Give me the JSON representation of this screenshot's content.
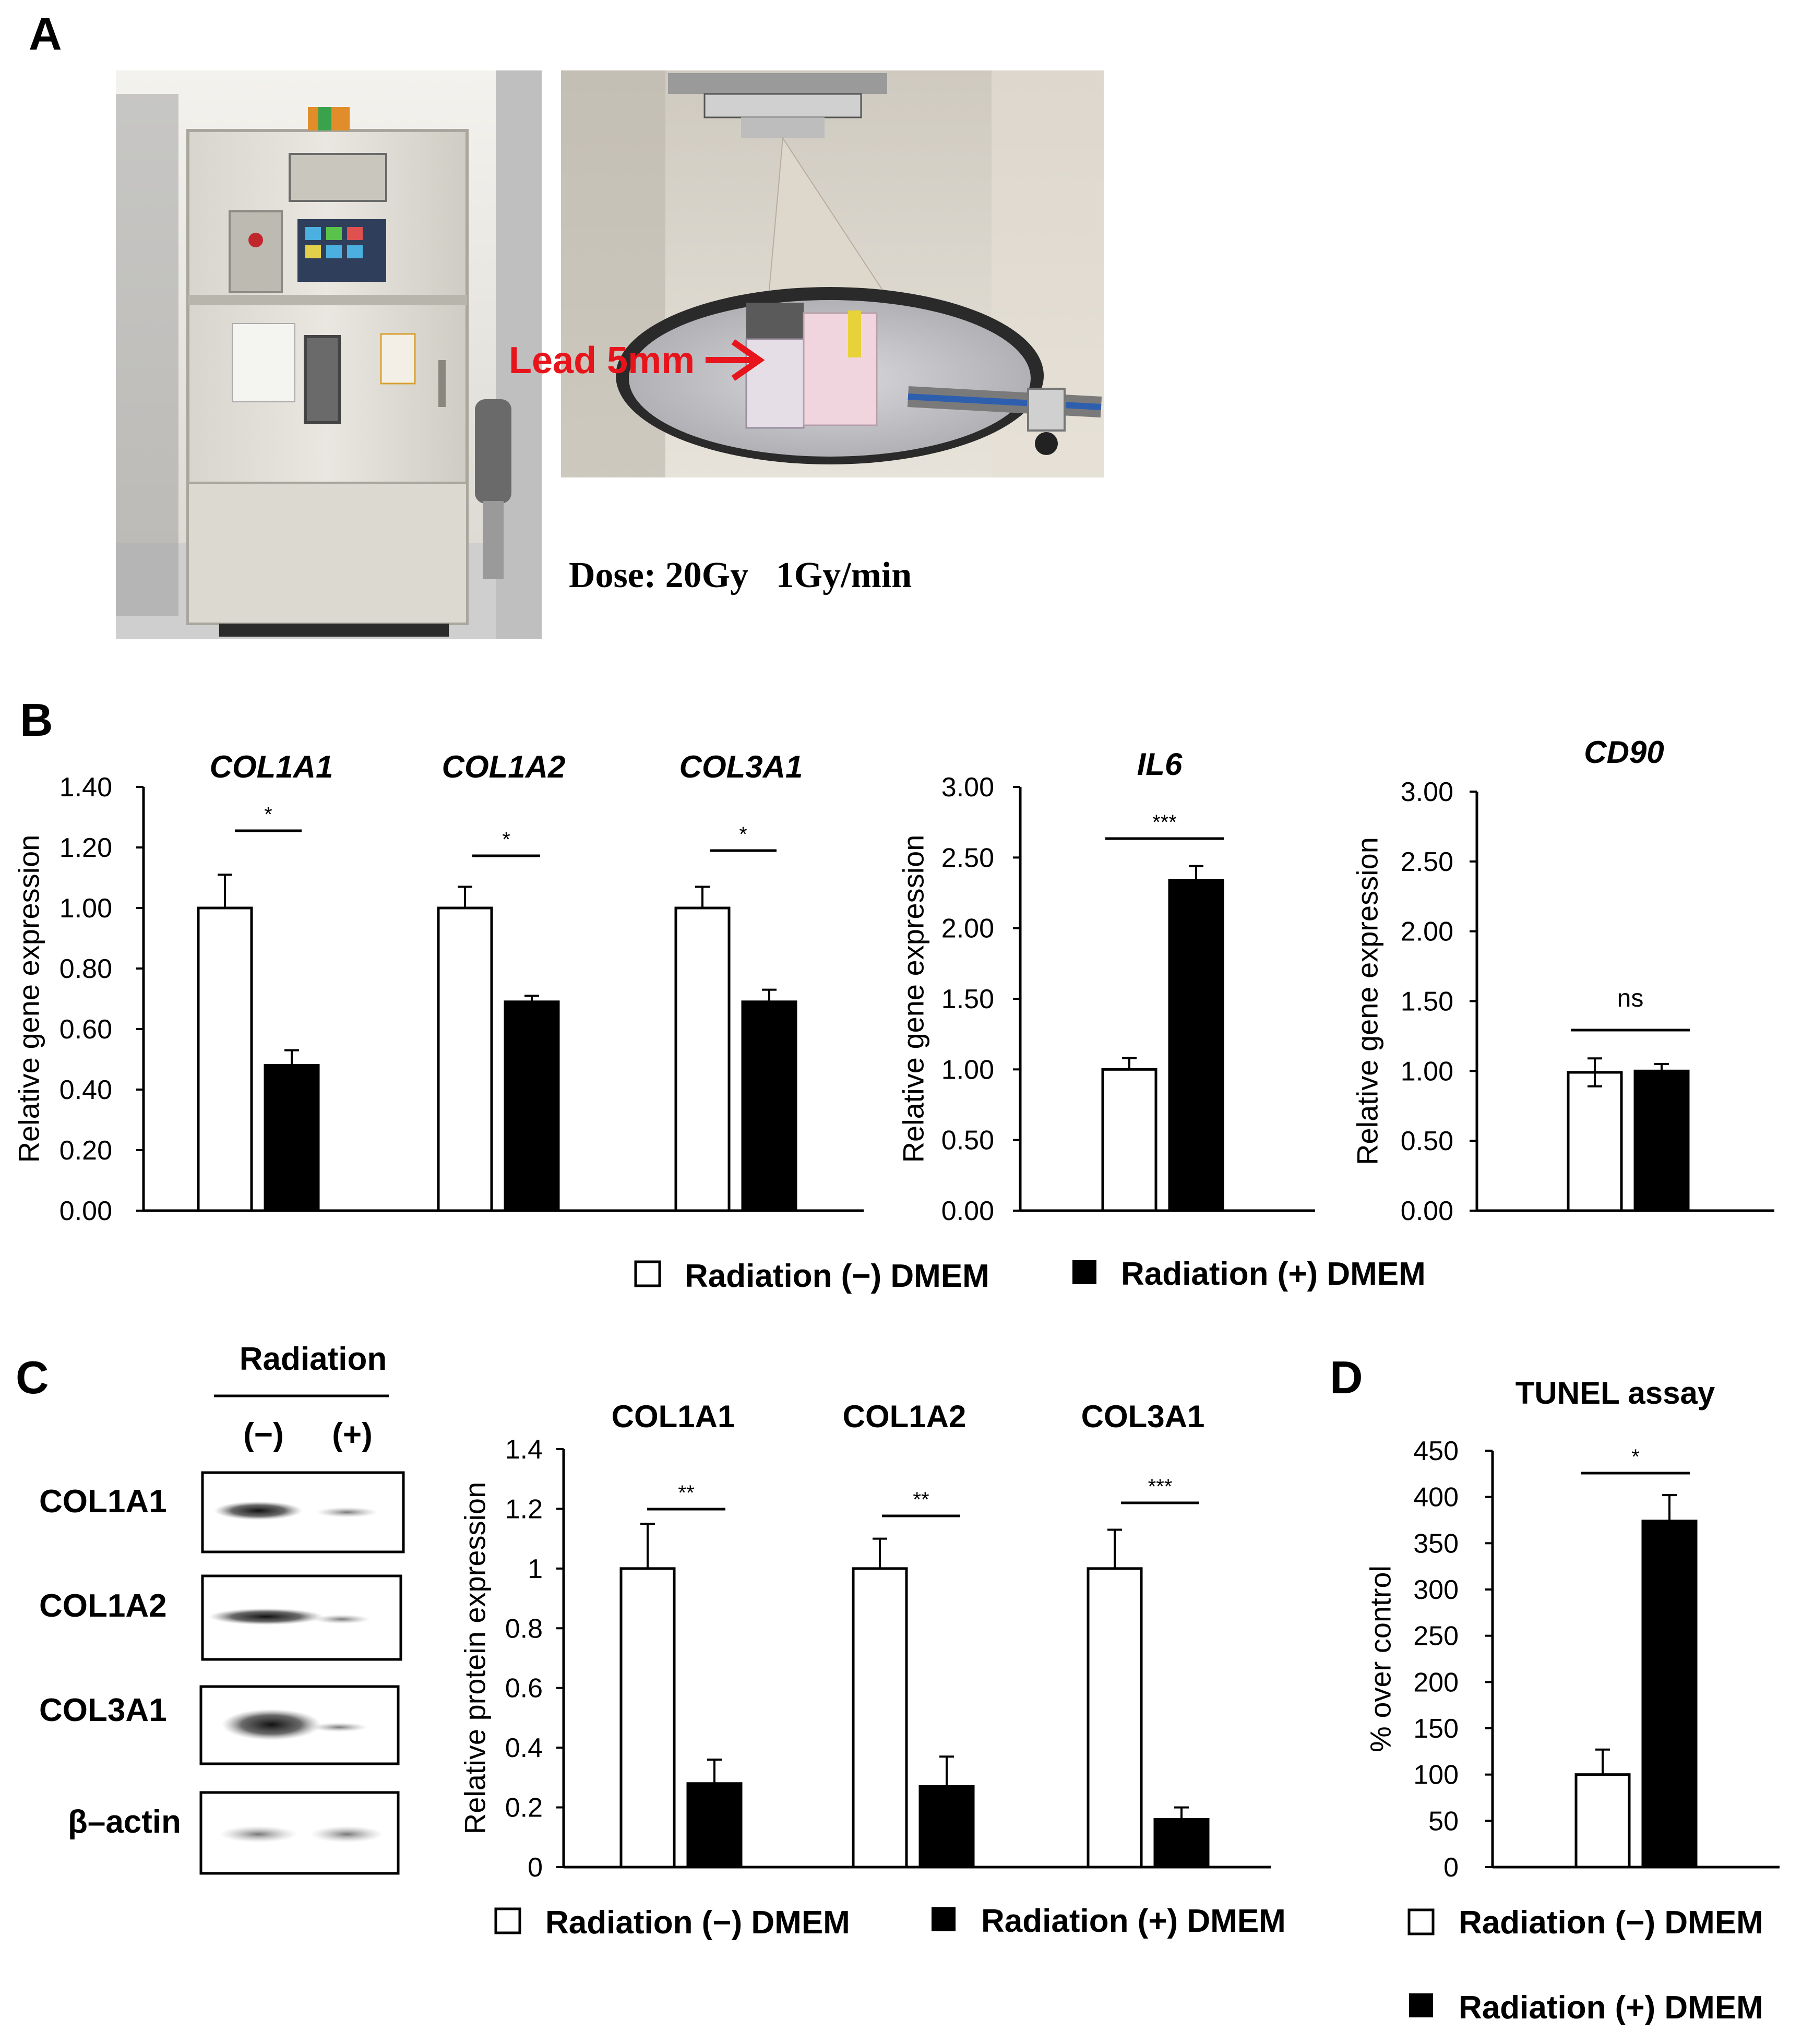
{
  "panels": {
    "A": {
      "label": "A",
      "photo_left": "irradiator cabinet photo",
      "photo_right": "irradiation chamber interior photo",
      "arrow_annotation": "Lead 5mm",
      "dose_text": "Dose: 20Gy   1Gy/min"
    },
    "B": {
      "label": "B",
      "legend": [
        "Radiation (−) DMEM",
        "Radiation (+) DMEM"
      ]
    },
    "C": {
      "label": "C",
      "blot_header": "Radiation",
      "blot_lanes": [
        "(−)",
        "(+)"
      ],
      "blot_rows": [
        "COL1A1",
        "COL1A2",
        "COL3A1",
        "β–actin"
      ],
      "legend": [
        "Radiation (−) DMEM",
        "Radiation (+) DMEM"
      ]
    },
    "D": {
      "label": "D",
      "legend": [
        "Radiation (−) DMEM",
        "Radiation (+) DMEM"
      ]
    }
  },
  "colors": {
    "control": "#ffffff",
    "radiation": "#000000",
    "annotation": "#e8141c"
  },
  "chart_data": [
    {
      "id": "B1",
      "type": "bar",
      "ylabel": "Relative gene expression",
      "ylim": [
        0,
        1.4
      ],
      "ticks": [
        "0.00",
        "0.20",
        "0.40",
        "0.60",
        "0.80",
        "1.00",
        "1.20",
        "1.40"
      ],
      "groups": [
        {
          "title": "COL1A1",
          "values": [
            1.0,
            0.48
          ],
          "errors": [
            0.11,
            0.05
          ],
          "sig": "*"
        },
        {
          "title": "COL1A2",
          "values": [
            1.0,
            0.69
          ],
          "errors": [
            0.07,
            0.02
          ],
          "sig": "*"
        },
        {
          "title": "COL3A1",
          "values": [
            1.0,
            0.69
          ],
          "errors": [
            0.07,
            0.04
          ],
          "sig": "*"
        }
      ]
    },
    {
      "id": "B2",
      "type": "bar",
      "ylabel": "Relative gene expression",
      "ylim": [
        0,
        3.0
      ],
      "ticks": [
        "0.00",
        "0.50",
        "1.00",
        "1.50",
        "2.00",
        "2.50",
        "3.00"
      ],
      "groups": [
        {
          "title": "IL6",
          "values": [
            1.0,
            2.34
          ],
          "errors": [
            0.08,
            0.1
          ],
          "sig": "***"
        }
      ]
    },
    {
      "id": "B3",
      "type": "bar",
      "ylabel": "Relative gene expression",
      "ylim": [
        0,
        3.0
      ],
      "ticks": [
        "0.00",
        "0.50",
        "1.00",
        "1.50",
        "2.00",
        "2.50",
        "3.00"
      ],
      "groups": [
        {
          "title": "CD90",
          "values": [
            0.99,
            1.0
          ],
          "errors": [
            0.1,
            0.05
          ],
          "sig": "ns"
        }
      ]
    },
    {
      "id": "C",
      "type": "bar",
      "ylabel": "Relative protein expression",
      "ylim": [
        0,
        1.4
      ],
      "ticks": [
        "0",
        "0.2",
        "0.4",
        "0.6",
        "0.8",
        "1",
        "1.2",
        "1.4"
      ],
      "groups": [
        {
          "title": "COL1A1",
          "values": [
            1.0,
            0.28
          ],
          "errors": [
            0.15,
            0.08
          ],
          "sig": "**"
        },
        {
          "title": "COL1A2",
          "values": [
            1.0,
            0.27
          ],
          "errors": [
            0.1,
            0.1
          ],
          "sig": "**"
        },
        {
          "title": "COL3A1",
          "values": [
            1.0,
            0.16
          ],
          "errors": [
            0.13,
            0.04
          ],
          "sig": "***"
        }
      ]
    },
    {
      "id": "D",
      "type": "bar",
      "title": "TUNEL assay",
      "ylabel": "% over control",
      "ylim": [
        0,
        450
      ],
      "ticks": [
        "0",
        "50",
        "100",
        "150",
        "200",
        "250",
        "300",
        "350",
        "400",
        "450"
      ],
      "groups": [
        {
          "title": "",
          "values": [
            100,
            374
          ],
          "errors": [
            27,
            28
          ],
          "sig": "*"
        }
      ]
    }
  ]
}
